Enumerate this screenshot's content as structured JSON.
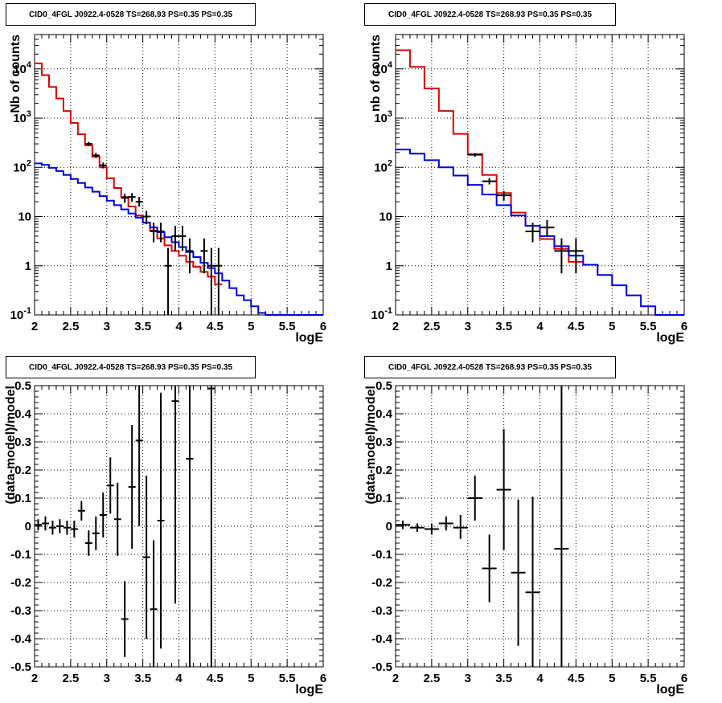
{
  "chart_data": [
    {
      "type": "line",
      "title": "CID0_4FGL J0922.4-0528 TS=268.93 PS=0.35 PS=0.35",
      "xlabel": "logE",
      "ylabel": "Nb of counts",
      "xlim": [
        2,
        6
      ],
      "ylim": [
        0.1,
        50000
      ],
      "yscale": "log",
      "grid": true,
      "xticks": [
        "2",
        "2.5",
        "3",
        "3.5",
        "4",
        "4.5",
        "5",
        "5.5",
        "6"
      ],
      "yticks": [
        {
          "v": 0.1,
          "label": "10^-1"
        },
        {
          "v": 1,
          "label": "1"
        },
        {
          "v": 10,
          "label": "10"
        },
        {
          "v": 100,
          "label": "10^2"
        },
        {
          "v": 1000,
          "label": "10^3"
        },
        {
          "v": 10000,
          "label": "10^4"
        }
      ],
      "series": [
        {
          "kind": "step",
          "color": "#e00000",
          "edges": [
            2.0,
            2.1,
            2.2,
            2.3,
            2.4,
            2.5,
            2.6,
            2.7,
            2.8,
            2.9,
            3.0,
            3.1,
            3.2,
            3.3,
            3.4,
            3.5,
            3.6,
            3.7,
            3.8,
            3.9,
            4.0,
            4.1,
            4.2,
            4.3,
            4.4,
            4.5,
            4.6
          ],
          "values": [
            13000,
            7500,
            4300,
            2500,
            1400,
            800,
            470,
            280,
            165,
            100,
            60,
            38,
            25,
            16,
            10.5,
            7.5,
            5.2,
            3.6,
            2.6,
            2.0,
            1.6,
            1.2,
            0.95,
            0.75,
            0.6,
            0.42
          ]
        },
        {
          "kind": "step",
          "color": "#0000e0",
          "edges": [
            2.0,
            2.1,
            2.2,
            2.3,
            2.4,
            2.5,
            2.6,
            2.7,
            2.8,
            2.9,
            3.0,
            3.1,
            3.2,
            3.3,
            3.4,
            3.5,
            3.6,
            3.7,
            3.8,
            3.9,
            4.0,
            4.1,
            4.2,
            4.3,
            4.4,
            4.5,
            4.6,
            4.7,
            4.8,
            4.9,
            5.0,
            5.1,
            5.2,
            5.3,
            5.4,
            5.5,
            5.6,
            5.7,
            5.8,
            5.9,
            6.0
          ],
          "values": [
            120,
            112,
            98,
            84,
            70,
            58,
            48,
            39,
            32,
            26,
            21,
            17,
            14,
            11.5,
            9.5,
            7.5,
            6.0,
            4.8,
            3.8,
            3.0,
            2.4,
            1.9,
            1.5,
            1.15,
            0.9,
            0.7,
            0.5,
            0.35,
            0.25,
            0.2,
            0.15,
            0.11,
            0.1,
            0.1,
            0.1,
            0.1,
            0.1,
            0.1,
            0.1,
            0.1
          ]
        }
      ],
      "points": [
        {
          "x": 2.75,
          "y": 300,
          "xerr": 0.05,
          "lo": 270,
          "hi": 330
        },
        {
          "x": 2.85,
          "y": 175,
          "xerr": 0.05,
          "lo": 155,
          "hi": 195
        },
        {
          "x": 2.95,
          "y": 110,
          "xerr": 0.05,
          "lo": 95,
          "hi": 125
        },
        {
          "x": 3.25,
          "y": 24,
          "xerr": 0.05,
          "lo": 19,
          "hi": 29
        },
        {
          "x": 3.35,
          "y": 25,
          "xerr": 0.05,
          "lo": 20,
          "hi": 30
        },
        {
          "x": 3.45,
          "y": 20,
          "xerr": 0.05,
          "lo": 16,
          "hi": 25
        },
        {
          "x": 3.55,
          "y": 10,
          "xerr": 0.05,
          "lo": 7,
          "hi": 13
        },
        {
          "x": 3.65,
          "y": 5,
          "xerr": 0.05,
          "lo": 3,
          "hi": 7.5
        },
        {
          "x": 3.75,
          "y": 5,
          "xerr": 0.05,
          "lo": 3,
          "hi": 7.5
        },
        {
          "x": 3.85,
          "y": 1,
          "xerr": 0.05,
          "lo": 0.1,
          "hi": 2.3
        },
        {
          "x": 3.95,
          "y": 4,
          "xerr": 0.05,
          "lo": 2,
          "hi": 6.5
        },
        {
          "x": 4.05,
          "y": 4,
          "xerr": 0.05,
          "lo": 2,
          "hi": 6.5
        },
        {
          "x": 4.15,
          "y": 2,
          "xerr": 0.05,
          "lo": 0.7,
          "hi": 3.6
        },
        {
          "x": 4.35,
          "y": 2,
          "xerr": 0.05,
          "lo": 0.7,
          "hi": 3.6
        },
        {
          "x": 4.45,
          "y": 1,
          "xerr": 0.05,
          "lo": 0.1,
          "hi": 2.3
        },
        {
          "x": 4.55,
          "y": 1,
          "xerr": 0.05,
          "lo": 0.1,
          "hi": 2.3
        }
      ]
    },
    {
      "type": "line",
      "title": "CID0_4FGL J0922.4-0528 TS=268.93 PS=0.35 PS=0.35",
      "xlabel": "logE",
      "ylabel": "nb of counts",
      "xlim": [
        2,
        6
      ],
      "ylim": [
        0.1,
        50000
      ],
      "yscale": "log",
      "grid": true,
      "xticks": [
        "2",
        "2.5",
        "3",
        "3.5",
        "4",
        "4.5",
        "5",
        "5.5",
        "6"
      ],
      "yticks": [
        {
          "v": 0.1,
          "label": "10^-1"
        },
        {
          "v": 1,
          "label": "1"
        },
        {
          "v": 10,
          "label": "10"
        },
        {
          "v": 100,
          "label": "10^2"
        },
        {
          "v": 1000,
          "label": "10^3"
        },
        {
          "v": 10000,
          "label": "10^4"
        }
      ],
      "series": [
        {
          "kind": "step",
          "color": "#e00000",
          "edges": [
            2.0,
            2.2,
            2.4,
            2.6,
            2.8,
            3.0,
            3.2,
            3.4,
            3.6,
            3.8,
            4.0,
            4.2,
            4.4,
            4.6
          ],
          "values": [
            24000,
            11000,
            4000,
            1400,
            480,
            185,
            70,
            30,
            12,
            6.5,
            3.5,
            2.2,
            1.2
          ]
        },
        {
          "kind": "step",
          "color": "#0000e0",
          "edges": [
            2.0,
            2.2,
            2.4,
            2.6,
            2.8,
            3.0,
            3.2,
            3.4,
            3.6,
            3.8,
            4.0,
            4.2,
            4.4,
            4.6,
            4.8,
            5.0,
            5.2,
            5.4,
            5.6,
            5.8,
            6.0
          ],
          "values": [
            230,
            190,
            140,
            100,
            68,
            44,
            28,
            17,
            10.5,
            6.5,
            4.0,
            2.5,
            1.6,
            1.05,
            0.65,
            0.4,
            0.25,
            0.15,
            0.1,
            0.1
          ]
        }
      ],
      "points": [
        {
          "x": 3.1,
          "y": 180,
          "xerr": 0.1,
          "lo": 165,
          "hi": 195
        },
        {
          "x": 3.3,
          "y": 52,
          "xerr": 0.1,
          "lo": 45,
          "hi": 60
        },
        {
          "x": 3.5,
          "y": 27,
          "xerr": 0.1,
          "lo": 21,
          "hi": 33
        },
        {
          "x": 3.9,
          "y": 5,
          "xerr": 0.1,
          "lo": 3,
          "hi": 7.5
        },
        {
          "x": 4.1,
          "y": 6,
          "xerr": 0.1,
          "lo": 4,
          "hi": 8.5
        },
        {
          "x": 4.3,
          "y": 2,
          "xerr": 0.1,
          "lo": 0.7,
          "hi": 3.6
        },
        {
          "x": 4.5,
          "y": 2,
          "xerr": 0.1,
          "lo": 0.7,
          "hi": 3.6
        }
      ]
    },
    {
      "type": "scatter",
      "title": "CID0_4FGL J0922.4-0528 TS=268.93 PS=0.35 PS=0.35",
      "xlabel": "logE",
      "ylabel": "(data-model)/model",
      "xlim": [
        2,
        6
      ],
      "ylim": [
        -0.5,
        0.5
      ],
      "grid": true,
      "xticks": [
        "2",
        "2.5",
        "3",
        "3.5",
        "4",
        "4.5",
        "5",
        "5.5",
        "6"
      ],
      "yticks": [
        {
          "v": -0.5,
          "label": "-0.5"
        },
        {
          "v": -0.4,
          "label": "-0.4"
        },
        {
          "v": -0.3,
          "label": "-0.3"
        },
        {
          "v": -0.2,
          "label": "-0.2"
        },
        {
          "v": -0.1,
          "label": "-0.1"
        },
        {
          "v": 0,
          "label": "0"
        },
        {
          "v": 0.1,
          "label": "0.1"
        },
        {
          "v": 0.2,
          "label": "0.2"
        },
        {
          "v": 0.3,
          "label": "0.3"
        },
        {
          "v": 0.4,
          "label": "0.4"
        },
        {
          "v": 0.5,
          "label": "0.5"
        }
      ],
      "points": [
        {
          "x": 2.05,
          "y": 0.005,
          "xerr": 0.05,
          "lo": -0.015,
          "hi": 0.025
        },
        {
          "x": 2.15,
          "y": 0.01,
          "xerr": 0.05,
          "lo": -0.015,
          "hi": 0.035
        },
        {
          "x": 2.25,
          "y": -0.005,
          "xerr": 0.05,
          "lo": -0.03,
          "hi": 0.02
        },
        {
          "x": 2.35,
          "y": 0.0,
          "xerr": 0.05,
          "lo": -0.025,
          "hi": 0.025
        },
        {
          "x": 2.45,
          "y": -0.005,
          "xerr": 0.05,
          "lo": -0.03,
          "hi": 0.02
        },
        {
          "x": 2.55,
          "y": -0.01,
          "xerr": 0.05,
          "lo": -0.04,
          "hi": 0.02
        },
        {
          "x": 2.65,
          "y": 0.055,
          "xerr": 0.05,
          "lo": 0.02,
          "hi": 0.09
        },
        {
          "x": 2.75,
          "y": -0.06,
          "xerr": 0.05,
          "lo": -0.105,
          "hi": -0.015
        },
        {
          "x": 2.85,
          "y": -0.025,
          "xerr": 0.05,
          "lo": -0.085,
          "hi": 0.035
        },
        {
          "x": 2.95,
          "y": 0.04,
          "xerr": 0.05,
          "lo": -0.04,
          "hi": 0.12
        },
        {
          "x": 3.05,
          "y": 0.145,
          "xerr": 0.05,
          "lo": 0.045,
          "hi": 0.245
        },
        {
          "x": 3.15,
          "y": 0.025,
          "xerr": 0.05,
          "lo": -0.105,
          "hi": 0.155
        },
        {
          "x": 3.25,
          "y": -0.33,
          "xerr": 0.05,
          "lo": -0.465,
          "hi": -0.195
        },
        {
          "x": 3.35,
          "y": 0.14,
          "xerr": 0.05,
          "lo": -0.08,
          "hi": 0.36
        },
        {
          "x": 3.45,
          "y": 0.305,
          "xerr": 0.05,
          "lo": 0.0,
          "hi": 0.5
        },
        {
          "x": 3.55,
          "y": -0.11,
          "xerr": 0.05,
          "lo": -0.4,
          "hi": 0.18
        },
        {
          "x": 3.65,
          "y": -0.295,
          "xerr": 0.05,
          "lo": -0.5,
          "hi": -0.05
        },
        {
          "x": 3.75,
          "y": 0.02,
          "xerr": 0.05,
          "lo": -0.435,
          "hi": 0.475
        },
        {
          "x": 3.95,
          "y": 0.445,
          "xerr": 0.05,
          "lo": -0.275,
          "hi": 0.5
        },
        {
          "x": 4.15,
          "y": 0.24,
          "xerr": 0.05,
          "lo": -0.5,
          "hi": 0.5
        },
        {
          "x": 4.45,
          "y": 0.49,
          "xerr": 0.05,
          "lo": -0.5,
          "hi": 0.5
        }
      ]
    },
    {
      "type": "scatter",
      "title": "CID0_4FGL J0922.4-0528 TS=268.93 PS=0.35 PS=0.35",
      "xlabel": "logE",
      "ylabel": "(data-model)/model",
      "xlim": [
        2,
        6
      ],
      "ylim": [
        -0.5,
        0.5
      ],
      "grid": true,
      "xticks": [
        "2",
        "2.5",
        "3",
        "3.5",
        "4",
        "4.5",
        "5",
        "5.5",
        "6"
      ],
      "yticks": [
        {
          "v": -0.5,
          "label": "-0.5"
        },
        {
          "v": -0.4,
          "label": "-0.4"
        },
        {
          "v": -0.3,
          "label": "-0.3"
        },
        {
          "v": -0.2,
          "label": "-0.2"
        },
        {
          "v": -0.1,
          "label": "-0.1"
        },
        {
          "v": 0,
          "label": "0"
        },
        {
          "v": 0.1,
          "label": "0.1"
        },
        {
          "v": 0.2,
          "label": "0.2"
        },
        {
          "v": 0.3,
          "label": "0.3"
        },
        {
          "v": 0.4,
          "label": "0.4"
        },
        {
          "v": 0.5,
          "label": "0.5"
        }
      ],
      "points": [
        {
          "x": 2.1,
          "y": 0.005,
          "xerr": 0.1,
          "lo": -0.01,
          "hi": 0.02
        },
        {
          "x": 2.3,
          "y": -0.005,
          "xerr": 0.1,
          "lo": -0.02,
          "hi": 0.01
        },
        {
          "x": 2.5,
          "y": -0.01,
          "xerr": 0.1,
          "lo": -0.03,
          "hi": 0.01
        },
        {
          "x": 2.7,
          "y": 0.01,
          "xerr": 0.1,
          "lo": -0.015,
          "hi": 0.035
        },
        {
          "x": 2.9,
          "y": -0.005,
          "xerr": 0.1,
          "lo": -0.045,
          "hi": 0.04
        },
        {
          "x": 3.1,
          "y": 0.1,
          "xerr": 0.1,
          "lo": 0.02,
          "hi": 0.18
        },
        {
          "x": 3.3,
          "y": -0.15,
          "xerr": 0.1,
          "lo": -0.27,
          "hi": -0.03
        },
        {
          "x": 3.5,
          "y": 0.13,
          "xerr": 0.1,
          "lo": -0.085,
          "hi": 0.345
        },
        {
          "x": 3.7,
          "y": -0.165,
          "xerr": 0.1,
          "lo": -0.425,
          "hi": 0.095
        },
        {
          "x": 3.9,
          "y": -0.235,
          "xerr": 0.1,
          "lo": -0.5,
          "hi": 0.105
        },
        {
          "x": 4.3,
          "y": -0.08,
          "xerr": 0.1,
          "lo": -0.5,
          "hi": 0.5
        }
      ]
    }
  ]
}
